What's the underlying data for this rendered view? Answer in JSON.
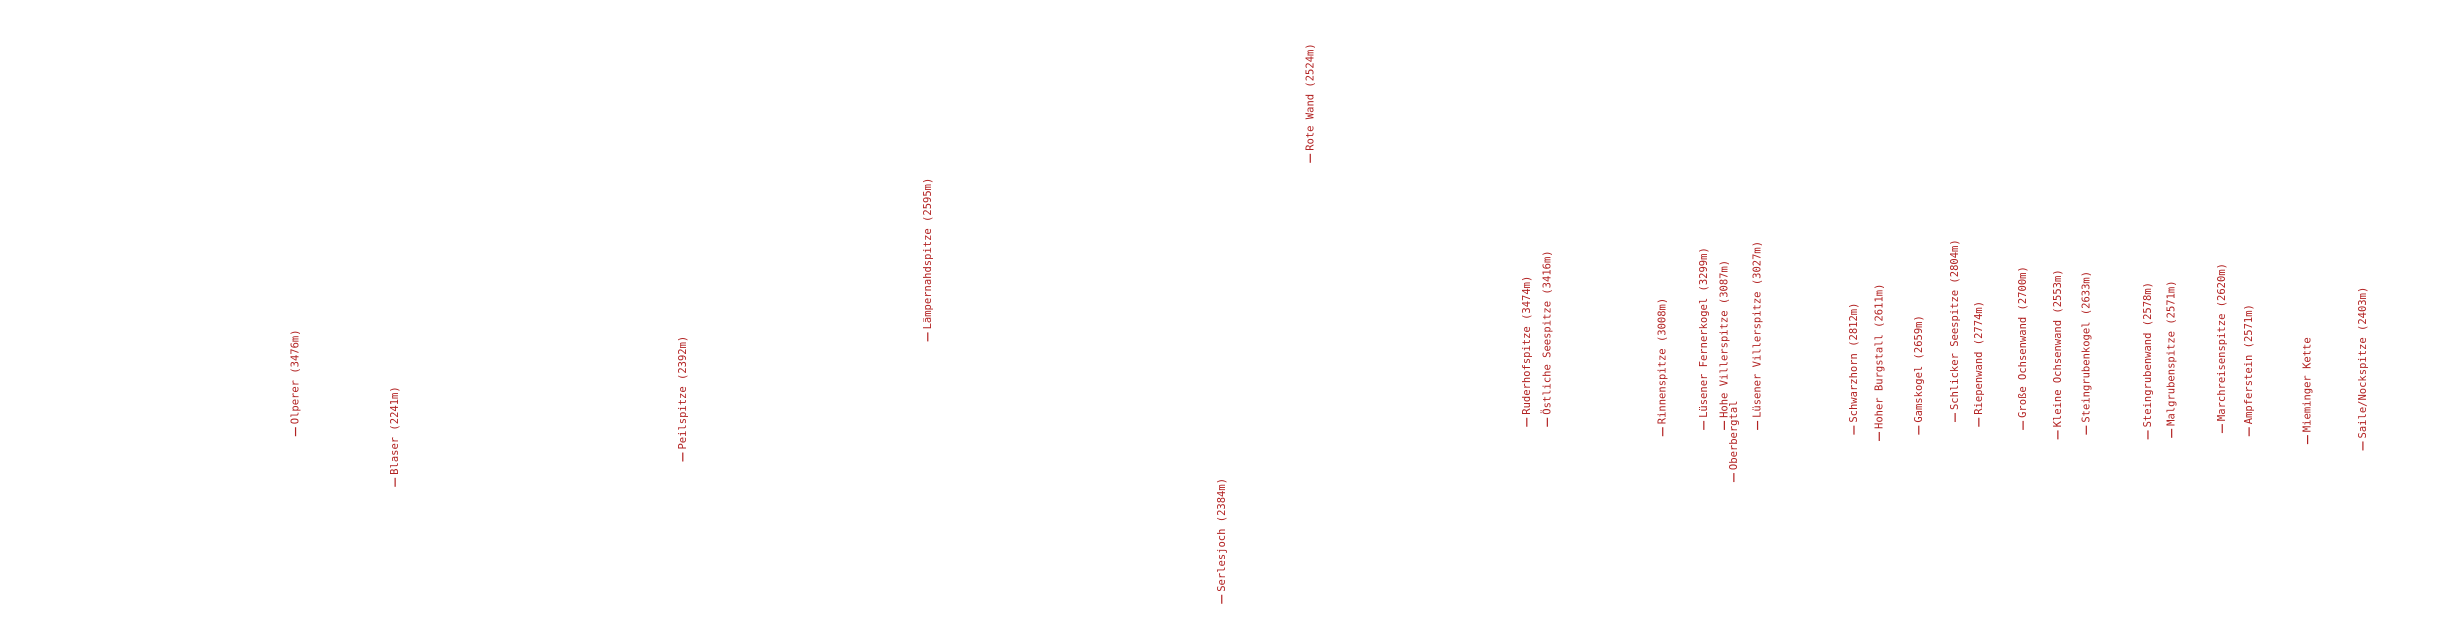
{
  "labels": [
    "Olperer (3476m)",
    "Blaser (2241m)",
    "Peilspitze (2392m)",
    "Lämpernahdspitze (2595m)",
    "Serlesjoch (2384m)",
    "Rote Wand (2524m)",
    "Ruderhofspitze (3474m)",
    "Östliche Seespitze (3416m)",
    "Rinnenspitze (3008m)",
    "Lüsener Fernerkogel (3299m)",
    "Hohe Villerspitze (3087m)",
    "Oberbergtal",
    "Lüsener Villerspitze (3027m)",
    "Schwarzhorn (2812m)",
    "Hoher Burgstall (2611m)",
    "Gamskogel (2659m)",
    "Schlicker Seespitze (2804m)",
    "Riepenwand (2774m)",
    "Große Ochsenwand (2700m)",
    "Kleine Ochsenwand (2553m)",
    "Steingrubenkogel (2633m)",
    "Steingrubenwand (2578m)",
    "Malgrubenspitze (2571m)",
    "Marchreisenspitze (2620m)",
    "Ampferstein (2571m)",
    "Mieminger Kette",
    "Saile/Nockspitze (2403m)"
  ]
}
